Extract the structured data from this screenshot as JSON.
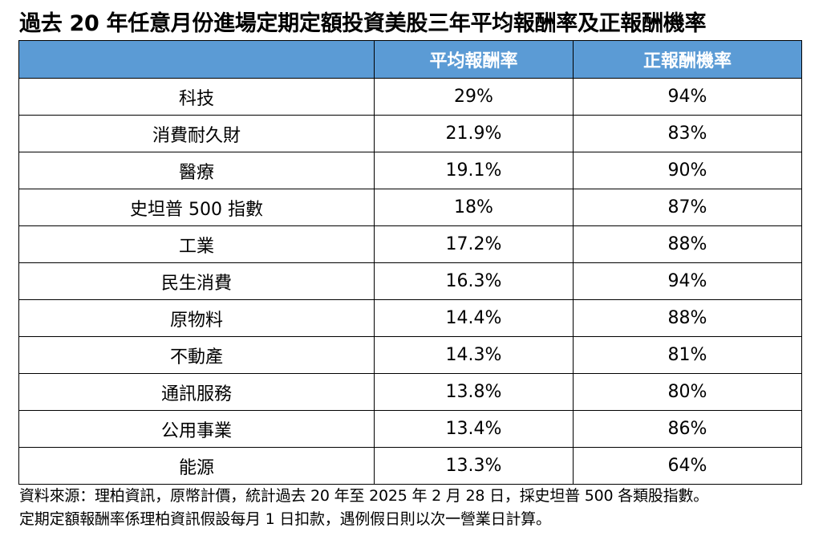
{
  "title": "過去 20 年任意月份進場定期定額投資美股三年平均報酬率及正報酬機率",
  "table": {
    "headers": [
      "",
      "平均報酬率",
      "正報酬機率"
    ],
    "rows": [
      {
        "sector": "科技",
        "avg_return": "29%",
        "positive_prob": "94%"
      },
      {
        "sector": "消費耐久財",
        "avg_return": "21.9%",
        "positive_prob": "83%"
      },
      {
        "sector": "醫療",
        "avg_return": "19.1%",
        "positive_prob": "90%"
      },
      {
        "sector": "史坦普 500 指數",
        "avg_return": "18%",
        "positive_prob": "87%"
      },
      {
        "sector": "工業",
        "avg_return": "17.2%",
        "positive_prob": "88%"
      },
      {
        "sector": "民生消費",
        "avg_return": "16.3%",
        "positive_prob": "94%"
      },
      {
        "sector": "原物料",
        "avg_return": "14.4%",
        "positive_prob": "88%"
      },
      {
        "sector": "不動產",
        "avg_return": "14.3%",
        "positive_prob": "81%"
      },
      {
        "sector": "通訊服務",
        "avg_return": "13.8%",
        "positive_prob": "80%"
      },
      {
        "sector": "公用事業",
        "avg_return": "13.4%",
        "positive_prob": "86%"
      },
      {
        "sector": "能源",
        "avg_return": "13.3%",
        "positive_prob": "64%"
      }
    ]
  },
  "footnotes": [
    "資料來源：理柏資訊，原幣計價，統計過去 20 年至 2025 年 2 月 28 日，採史坦普 500 各類股指數。",
    "定期定額報酬率係理柏資訊假設每月 1 日扣款，遇例假日則以次一營業日計算。"
  ],
  "colors": {
    "header_background": "#5b9bd5",
    "header_text": "#ffffff",
    "border": "#000000"
  }
}
